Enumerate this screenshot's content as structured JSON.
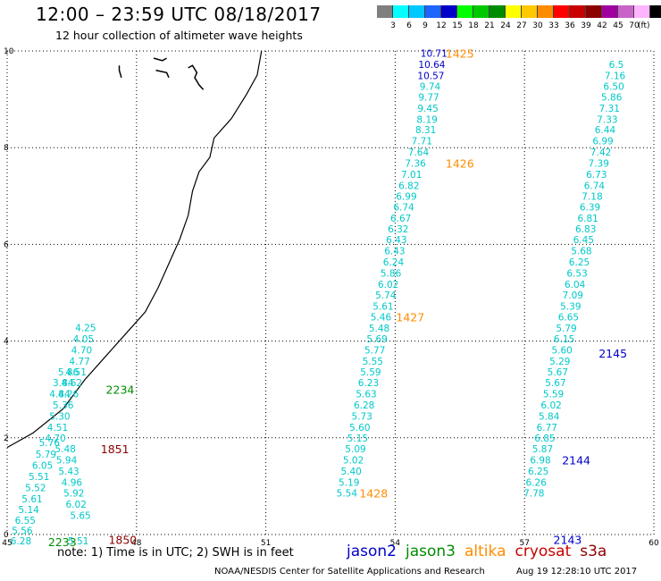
{
  "header": {
    "title": "12:00 – 23:59 UTC 08/18/2017",
    "subtitle": "12 hour collection of altimeter wave heights"
  },
  "colorbar": {
    "colors": [
      "#7f7f7f",
      "#00ffff",
      "#00c8ff",
      "#1e64ff",
      "#0000c8",
      "#00ff00",
      "#00c800",
      "#008c00",
      "#ffff00",
      "#ffc800",
      "#ff8c00",
      "#ff0000",
      "#c80000",
      "#8c0000",
      "#a000a0",
      "#c864c8",
      "#ffb4ff",
      "#000000"
    ],
    "labels": [
      "3",
      "6",
      "9",
      "12",
      "15",
      "18",
      "21",
      "24",
      "27",
      "30",
      "33",
      "36",
      "39",
      "42",
      "45",
      "70"
    ],
    "unit": "(ft)"
  },
  "footer": {
    "note": "note: 1) Time is in UTC; 2) SWH is in feet",
    "satellites": [
      {
        "name": "jason2",
        "color": "#0000c8"
      },
      {
        "name": "jason3",
        "color": "#008c00"
      },
      {
        "name": "altika",
        "color": "#ff8c00"
      },
      {
        "name": "cryosat",
        "color": "#c80000"
      },
      {
        "name": "s3a",
        "color": "#8c0000"
      }
    ],
    "credit": "NOAA/NESDIS Center for Satellite Applications and Research",
    "timestamp": "Aug 19 12:28:10 UTC 2017"
  },
  "chart_data": {
    "type": "scatter",
    "title": "12 hour collection of altimeter wave heights",
    "x_ticks": [
      "45",
      "48",
      "51",
      "54",
      "57",
      "60"
    ],
    "y_ticks": [
      "0",
      "2",
      "4",
      "6",
      "8",
      "10"
    ],
    "xlim": [
      45,
      60
    ],
    "ylim": [
      0,
      10
    ],
    "grid": true,
    "coastline": [
      [
        50.9,
        10
      ],
      [
        50.8,
        9.5
      ],
      [
        50.55,
        9.1
      ],
      [
        50.2,
        8.6
      ],
      [
        49.8,
        8.2
      ],
      [
        49.7,
        7.8
      ],
      [
        49.45,
        7.5
      ],
      [
        49.3,
        7.1
      ],
      [
        49.2,
        6.6
      ],
      [
        49.0,
        6.1
      ],
      [
        48.75,
        5.6
      ],
      [
        48.5,
        5.1
      ],
      [
        48.2,
        4.6
      ],
      [
        47.8,
        4.2
      ],
      [
        47.3,
        3.7
      ],
      [
        46.8,
        3.2
      ],
      [
        46.3,
        2.6
      ],
      [
        45.6,
        2.1
      ],
      [
        45.0,
        1.8
      ]
    ],
    "coast_islands": [
      [
        [
          47.6,
          9.7
        ],
        [
          47.6,
          9.6
        ],
        [
          47.65,
          9.45
        ]
      ],
      [
        [
          48.4,
          9.85
        ],
        [
          48.6,
          9.8
        ],
        [
          48.7,
          9.85
        ]
      ],
      [
        [
          48.45,
          9.6
        ],
        [
          48.7,
          9.55
        ],
        [
          48.75,
          9.45
        ]
      ],
      [
        [
          49.2,
          9.65
        ],
        [
          49.3,
          9.7
        ],
        [
          49.4,
          9.55
        ],
        [
          49.35,
          9.45
        ],
        [
          49.45,
          9.3
        ],
        [
          49.55,
          9.2
        ]
      ]
    ],
    "series": [
      {
        "name": "jason2",
        "color": "#0000c8",
        "points": [
          {
            "x": 54.9,
            "y": 9.95,
            "v": "10.71"
          },
          {
            "x": 54.85,
            "y": 9.72,
            "v": "10.64"
          },
          {
            "x": 54.83,
            "y": 9.49,
            "v": "10.57"
          }
        ]
      },
      {
        "name": "swh-3to6ft",
        "color": "#00c8c8",
        "points": [
          {
            "x": 54.81,
            "y": 9.27,
            "v": "9.74"
          },
          {
            "x": 54.78,
            "y": 9.05,
            "v": "9.77"
          },
          {
            "x": 54.76,
            "y": 8.82,
            "v": "9.45"
          },
          {
            "x": 54.74,
            "y": 8.59,
            "v": "8.19"
          },
          {
            "x": 54.71,
            "y": 8.37,
            "v": "8.31"
          },
          {
            "x": 54.62,
            "y": 8.14,
            "v": "7.71"
          },
          {
            "x": 54.54,
            "y": 7.91,
            "v": "7.64"
          },
          {
            "x": 54.47,
            "y": 7.68,
            "v": "7.36"
          },
          {
            "x": 54.38,
            "y": 7.45,
            "v": "7.01"
          },
          {
            "x": 54.32,
            "y": 7.22,
            "v": "6.82"
          },
          {
            "x": 54.26,
            "y": 7.0,
            "v": "6.99"
          },
          {
            "x": 54.2,
            "y": 6.77,
            "v": "6.74"
          },
          {
            "x": 54.13,
            "y": 6.54,
            "v": "6.67"
          },
          {
            "x": 54.07,
            "y": 6.32,
            "v": "6.32"
          },
          {
            "x": 54.03,
            "y": 6.1,
            "v": "6.43"
          },
          {
            "x": 53.99,
            "y": 5.87,
            "v": "6.43"
          },
          {
            "x": 53.96,
            "y": 5.64,
            "v": "6.24"
          },
          {
            "x": 53.9,
            "y": 5.41,
            "v": "5.86"
          },
          {
            "x": 53.84,
            "y": 5.18,
            "v": "6.02"
          },
          {
            "x": 53.78,
            "y": 4.95,
            "v": "5.74"
          },
          {
            "x": 53.72,
            "y": 4.72,
            "v": "5.61"
          },
          {
            "x": 53.67,
            "y": 4.5,
            "v": "5.46"
          },
          {
            "x": 53.63,
            "y": 4.27,
            "v": "5.48"
          },
          {
            "x": 53.58,
            "y": 4.05,
            "v": "5.69"
          },
          {
            "x": 53.53,
            "y": 3.82,
            "v": "5.77"
          },
          {
            "x": 53.48,
            "y": 3.59,
            "v": "5.55"
          },
          {
            "x": 53.43,
            "y": 3.36,
            "v": "5.59"
          },
          {
            "x": 53.38,
            "y": 3.14,
            "v": "6.23"
          },
          {
            "x": 53.33,
            "y": 2.91,
            "v": "5.63"
          },
          {
            "x": 53.28,
            "y": 2.68,
            "v": "6.28"
          },
          {
            "x": 53.23,
            "y": 2.45,
            "v": "5.73"
          },
          {
            "x": 53.18,
            "y": 2.22,
            "v": "5.60"
          },
          {
            "x": 53.13,
            "y": 2.0,
            "v": "5.15"
          },
          {
            "x": 53.08,
            "y": 1.77,
            "v": "5.09"
          },
          {
            "x": 53.03,
            "y": 1.54,
            "v": "5.02"
          },
          {
            "x": 52.98,
            "y": 1.31,
            "v": "5.40"
          },
          {
            "x": 52.93,
            "y": 1.08,
            "v": "5.19"
          },
          {
            "x": 52.88,
            "y": 0.86,
            "v": "5.54"
          },
          {
            "x": 57.22,
            "y": 0.86,
            "v": "7.78"
          },
          {
            "x": 57.27,
            "y": 1.08,
            "v": "6.26"
          },
          {
            "x": 57.32,
            "y": 1.31,
            "v": "6.25"
          },
          {
            "x": 57.37,
            "y": 1.54,
            "v": "6.98"
          },
          {
            "x": 57.42,
            "y": 1.77,
            "v": "5.87"
          },
          {
            "x": 57.47,
            "y": 2.0,
            "v": "6.85"
          },
          {
            "x": 57.52,
            "y": 2.22,
            "v": "6.77"
          },
          {
            "x": 57.57,
            "y": 2.45,
            "v": "5.84"
          },
          {
            "x": 57.62,
            "y": 2.68,
            "v": "6.02"
          },
          {
            "x": 57.67,
            "y": 2.91,
            "v": "5.59"
          },
          {
            "x": 57.72,
            "y": 3.14,
            "v": "5.67"
          },
          {
            "x": 57.77,
            "y": 3.36,
            "v": "5.67"
          },
          {
            "x": 57.82,
            "y": 3.59,
            "v": "5.29"
          },
          {
            "x": 57.87,
            "y": 3.82,
            "v": "5.60"
          },
          {
            "x": 57.92,
            "y": 4.05,
            "v": "6.15"
          },
          {
            "x": 57.97,
            "y": 4.27,
            "v": "5.79"
          },
          {
            "x": 58.02,
            "y": 4.5,
            "v": "6.65"
          },
          {
            "x": 58.07,
            "y": 4.72,
            "v": "5.39"
          },
          {
            "x": 58.12,
            "y": 4.95,
            "v": "7.09"
          },
          {
            "x": 58.17,
            "y": 5.18,
            "v": "6.04"
          },
          {
            "x": 58.22,
            "y": 5.41,
            "v": "6.53"
          },
          {
            "x": 58.27,
            "y": 5.64,
            "v": "6.25"
          },
          {
            "x": 58.32,
            "y": 5.87,
            "v": "5.68"
          },
          {
            "x": 58.37,
            "y": 6.1,
            "v": "6.45"
          },
          {
            "x": 58.42,
            "y": 6.32,
            "v": "6.83"
          },
          {
            "x": 58.47,
            "y": 6.54,
            "v": "6.81"
          },
          {
            "x": 58.52,
            "y": 6.77,
            "v": "6.39"
          },
          {
            "x": 58.57,
            "y": 7.0,
            "v": "7.18"
          },
          {
            "x": 58.62,
            "y": 7.22,
            "v": "6.74"
          },
          {
            "x": 58.67,
            "y": 7.45,
            "v": "6.73"
          },
          {
            "x": 58.72,
            "y": 7.68,
            "v": "7.39"
          },
          {
            "x": 58.77,
            "y": 7.91,
            "v": "7.42"
          },
          {
            "x": 58.82,
            "y": 8.14,
            "v": "6.99"
          },
          {
            "x": 58.87,
            "y": 8.37,
            "v": "6.44"
          },
          {
            "x": 58.92,
            "y": 8.59,
            "v": "7.33"
          },
          {
            "x": 58.97,
            "y": 8.82,
            "v": "7.31"
          },
          {
            "x": 59.02,
            "y": 9.05,
            "v": "5.86"
          },
          {
            "x": 59.07,
            "y": 9.27,
            "v": "6.50"
          },
          {
            "x": 59.1,
            "y": 9.49,
            "v": "7.16"
          },
          {
            "x": 59.13,
            "y": 9.72,
            "v": "6.5"
          },
          {
            "x": 46.82,
            "y": 4.28,
            "v": "4.25"
          },
          {
            "x": 46.77,
            "y": 4.05,
            "v": "4.05"
          },
          {
            "x": 46.73,
            "y": 3.82,
            "v": "4.70"
          },
          {
            "x": 46.68,
            "y": 3.59,
            "v": "4.77"
          },
          {
            "x": 46.6,
            "y": 3.36,
            "v": "4.51"
          },
          {
            "x": 46.42,
            "y": 3.36,
            "v": "5.86"
          },
          {
            "x": 46.5,
            "y": 3.14,
            "v": "4.62"
          },
          {
            "x": 46.3,
            "y": 3.14,
            "v": "3.84"
          },
          {
            "x": 46.42,
            "y": 2.91,
            "v": "4.26"
          },
          {
            "x": 46.22,
            "y": 2.91,
            "v": "4.84"
          },
          {
            "x": 46.3,
            "y": 2.68,
            "v": "5.36"
          },
          {
            "x": 46.22,
            "y": 2.45,
            "v": "5.30"
          },
          {
            "x": 46.17,
            "y": 2.22,
            "v": "4.51"
          },
          {
            "x": 46.12,
            "y": 2.0,
            "v": "4.70"
          },
          {
            "x": 45.98,
            "y": 1.9,
            "v": "5.76"
          },
          {
            "x": 46.35,
            "y": 1.77,
            "v": "5.48"
          },
          {
            "x": 45.9,
            "y": 1.66,
            "v": "5.79"
          },
          {
            "x": 46.38,
            "y": 1.54,
            "v": "5.94"
          },
          {
            "x": 45.82,
            "y": 1.43,
            "v": "6.05"
          },
          {
            "x": 46.43,
            "y": 1.31,
            "v": "5.43"
          },
          {
            "x": 45.74,
            "y": 1.2,
            "v": "5.51"
          },
          {
            "x": 46.5,
            "y": 1.08,
            "v": "4.96"
          },
          {
            "x": 45.66,
            "y": 0.97,
            "v": "5.52"
          },
          {
            "x": 46.55,
            "y": 0.86,
            "v": "5.92"
          },
          {
            "x": 45.58,
            "y": 0.74,
            "v": "5.61"
          },
          {
            "x": 46.6,
            "y": 0.63,
            "v": "6.02"
          },
          {
            "x": 45.5,
            "y": 0.52,
            "v": "5.14"
          },
          {
            "x": 45.42,
            "y": 0.3,
            "v": "6.55"
          },
          {
            "x": 46.7,
            "y": 0.4,
            "v": "5.65"
          },
          {
            "x": 45.35,
            "y": 0.08,
            "v": "5.56"
          },
          {
            "x": 45.32,
            "y": -0.13,
            "v": "6.28"
          },
          {
            "x": 46.65,
            "y": -0.13,
            "v": "5.51"
          }
        ]
      }
    ],
    "pass_labels": [
      {
        "x": 55.5,
        "y": 9.95,
        "text": "1425",
        "color": "#ff8c00"
      },
      {
        "x": 55.5,
        "y": 7.68,
        "text": "1426",
        "color": "#ff8c00"
      },
      {
        "x": 54.35,
        "y": 4.5,
        "text": "1427",
        "color": "#ff8c00"
      },
      {
        "x": 53.5,
        "y": 0.86,
        "text": "1428",
        "color": "#ff8c00"
      },
      {
        "x": 47.62,
        "y": 3.0,
        "text": "2234",
        "color": "#008c00"
      },
      {
        "x": 47.5,
        "y": 1.77,
        "text": "1851",
        "color": "#8c0000"
      },
      {
        "x": 47.68,
        "y": -0.1,
        "text": "1850",
        "color": "#8c0000"
      },
      {
        "x": 46.28,
        "y": -0.15,
        "text": "2233",
        "color": "#008c00"
      },
      {
        "x": 59.05,
        "y": 3.75,
        "text": "2145",
        "color": "#0000c8"
      },
      {
        "x": 58.2,
        "y": 1.54,
        "text": "2144",
        "color": "#0000c8"
      },
      {
        "x": 58.0,
        "y": -0.1,
        "text": "2143",
        "color": "#0000c8"
      }
    ]
  }
}
